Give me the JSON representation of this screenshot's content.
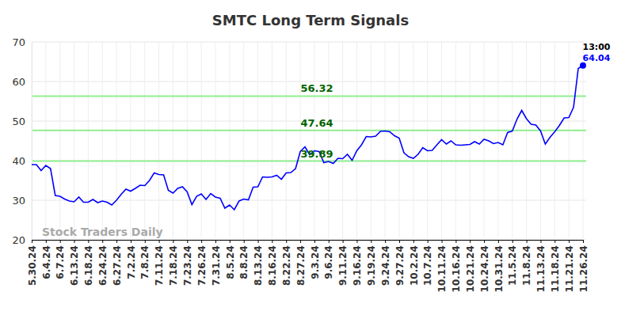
{
  "chart_data": {
    "type": "line",
    "title": "SMTC Long Term Signals",
    "categories": [
      "5.30.24",
      null,
      null,
      "6.4.24",
      null,
      null,
      "6.7.24",
      null,
      null,
      "6.13.24",
      null,
      null,
      "6.18.24",
      null,
      null,
      "6.24.24",
      null,
      null,
      "6.27.24",
      null,
      null,
      "7.2.24",
      null,
      null,
      "7.8.24",
      null,
      null,
      "7.11.24",
      null,
      null,
      "7.18.24",
      null,
      null,
      "7.23.24",
      null,
      null,
      "7.26.24",
      null,
      null,
      "7.31.24",
      null,
      null,
      "8.5.24",
      null,
      null,
      "8.8.24",
      null,
      null,
      "8.13.24",
      null,
      null,
      "8.16.24",
      null,
      null,
      "8.22.24",
      null,
      null,
      "8.27.24",
      null,
      null,
      "9.3.24",
      null,
      null,
      "9.6.24",
      null,
      null,
      "9.11.24",
      null,
      null,
      "9.16.24",
      null,
      null,
      "9.19.24",
      null,
      null,
      "9.24.24",
      null,
      null,
      "9.27.24",
      null,
      null,
      "10.2.24",
      null,
      null,
      "10.7.24",
      null,
      null,
      "10.11.24",
      null,
      null,
      "10.16.24",
      null,
      null,
      "10.21.24",
      null,
      null,
      "10.24.24",
      null,
      null,
      "10.31.24",
      null,
      null,
      "11.5.24",
      null,
      null,
      "11.8.24",
      null,
      null,
      "11.13.24",
      null,
      null,
      "11.18.24",
      null,
      null,
      "11.21.24",
      null,
      null,
      "11.26.24"
    ],
    "values": [
      39,
      39,
      37.5,
      38.8,
      38,
      31.2,
      31,
      30.3,
      29.8,
      29.6,
      30.8,
      29.5,
      29.5,
      30.2,
      29.4,
      29.8,
      29.5,
      28.8,
      30,
      31.5,
      32.8,
      32.3,
      33,
      33.8,
      33.7,
      35,
      36.9,
      36.5,
      36.4,
      32.5,
      31.8,
      33,
      33.4,
      32.1,
      28.9,
      31,
      31.6,
      30.2,
      31.7,
      30.8,
      30.5,
      28,
      28.8,
      27.6,
      29.8,
      30.3,
      30.1,
      33.3,
      33.4,
      35.9,
      35.8,
      35.9,
      36.3,
      35.3,
      36.9,
      37,
      38,
      42.3,
      43.5,
      41.5,
      42.5,
      42.3,
      39.5,
      39.8,
      39.3,
      40.6,
      40.5,
      41.6,
      40.1,
      42.5,
      44,
      46.1,
      46,
      46.2,
      47.4,
      47.5,
      47.3,
      46.3,
      45.7,
      42,
      41,
      40.6,
      41.6,
      43.3,
      42.5,
      42.6,
      44,
      45.3,
      44.2,
      45,
      44,
      43.9,
      44,
      44.1,
      44.8,
      44.2,
      45.4,
      45,
      44.3,
      44.6,
      44,
      47.1,
      47.5,
      50.5,
      52.7,
      50.6,
      49.2,
      49,
      47.5,
      44.2,
      45.9,
      47.3,
      48.9,
      50.8,
      50.9,
      53.5,
      63.3,
      64.04
    ],
    "color": "#0000ff",
    "ylim": [
      20,
      70
    ],
    "yticks": [
      20,
      30,
      40,
      50,
      60,
      70
    ],
    "grid": true,
    "reference_lines": [
      56.32,
      47.64,
      39.89
    ],
    "annotation": "13:00",
    "watermark": "Stock Traders Daily"
  }
}
